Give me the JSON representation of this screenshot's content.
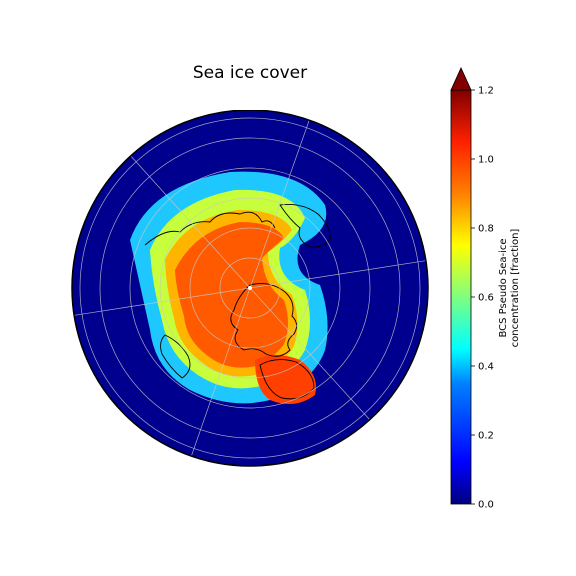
{
  "title": "Sea ice cover",
  "colorbar": {
    "label_lines": [
      "BCS Pseudo Sea-ice",
      "concentration [fraction]"
    ],
    "ticks": [
      "0.0",
      "0.2",
      "0.4",
      "0.6",
      "0.8",
      "1.0",
      "1.2"
    ],
    "min": 0.0,
    "max": 1.2,
    "extend": "max",
    "colormap": "jet"
  },
  "map": {
    "projection": "north-polar-stereographic",
    "gridlines": true,
    "coastlines": true,
    "colors": {
      "ocean_zero": "#00008f",
      "ice_full": "#ff5a00",
      "coastline": "#000000",
      "gridline": "#c8c8c8",
      "colorbar_extend": "#800000"
    }
  }
}
